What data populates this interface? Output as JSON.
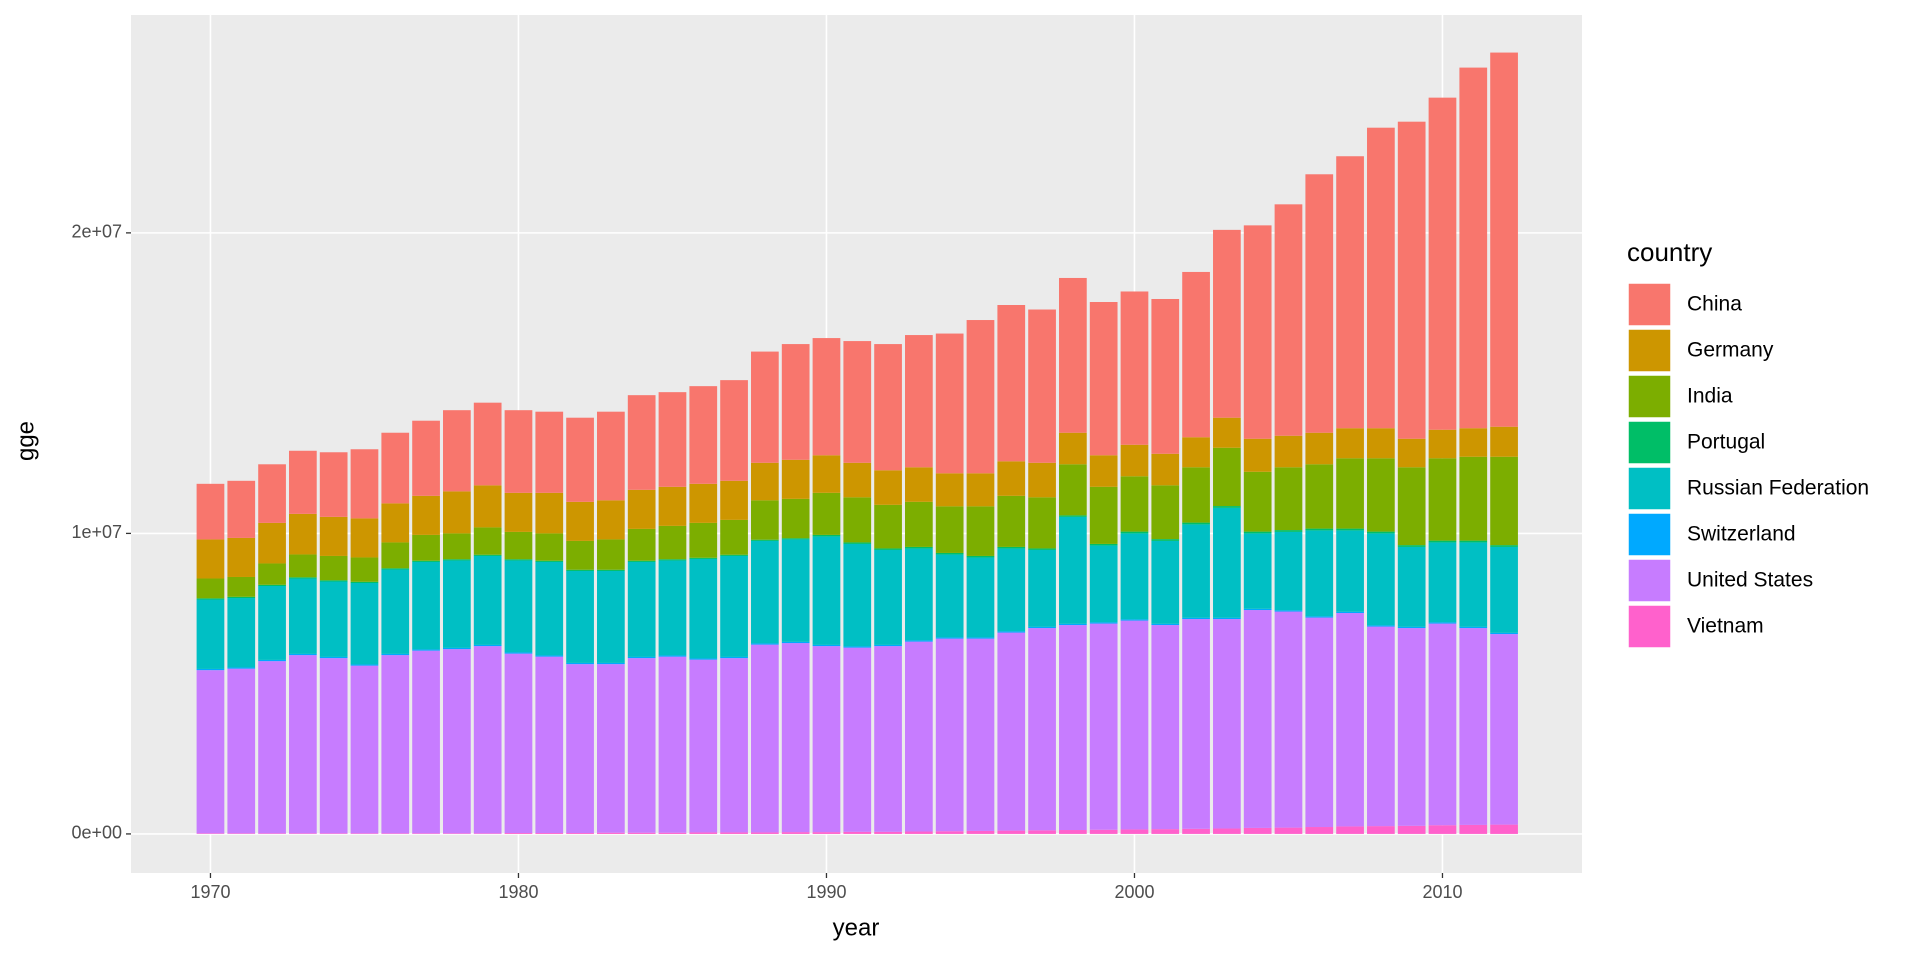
{
  "chart_data": {
    "type": "stacked-bar",
    "x_label": "year",
    "y_label": "gge",
    "legend_title": "country",
    "legend": "right",
    "grid": true,
    "x": [
      1970,
      1971,
      1972,
      1973,
      1974,
      1975,
      1976,
      1977,
      1978,
      1979,
      1980,
      1981,
      1982,
      1983,
      1984,
      1985,
      1986,
      1987,
      1988,
      1989,
      1990,
      1991,
      1992,
      1993,
      1994,
      1995,
      1996,
      1997,
      1998,
      1999,
      2000,
      2001,
      2002,
      2003,
      2004,
      2005,
      2006,
      2007,
      2008,
      2009,
      2010,
      2011,
      2012
    ],
    "xlim": [
      1967.42,
      2014.53
    ],
    "xticks": [
      1970,
      1980,
      1990,
      2000,
      2010
    ],
    "ylim": [
      -1300000,
      27250000
    ],
    "yticks": [
      {
        "value": 0,
        "label": "0e+00"
      },
      {
        "value": 10000000,
        "label": "1e+07"
      },
      {
        "value": 20000000,
        "label": "2e+07"
      }
    ],
    "series": [
      {
        "name": "China",
        "color": "#F8766D",
        "values": [
          1850000,
          1900000,
          1950000,
          2100000,
          2150000,
          2300000,
          2350000,
          2500000,
          2700000,
          2750000,
          2750000,
          2700000,
          2800000,
          2950000,
          3150000,
          3150000,
          3250000,
          3350000,
          3700000,
          3850000,
          3900000,
          4050000,
          4200000,
          4400000,
          4650000,
          5100000,
          5200000,
          5100000,
          5150000,
          5100000,
          5100000,
          5150000,
          5500000,
          6250000,
          7100000,
          7700000,
          8600000,
          9050000,
          10000000,
          10550000,
          11050000,
          12000000,
          12450000
        ]
      },
      {
        "name": "Germany",
        "color": "#CD9600",
        "values": [
          1300000,
          1300000,
          1350000,
          1350000,
          1300000,
          1300000,
          1300000,
          1300000,
          1400000,
          1400000,
          1300000,
          1350000,
          1300000,
          1300000,
          1300000,
          1300000,
          1300000,
          1300000,
          1250000,
          1300000,
          1250000,
          1150000,
          1150000,
          1150000,
          1100000,
          1100000,
          1150000,
          1150000,
          1050000,
          1050000,
          1050000,
          1050000,
          1000000,
          1000000,
          1100000,
          1050000,
          1050000,
          1000000,
          1000000,
          950000,
          950000,
          950000,
          1000000
        ]
      },
      {
        "name": "India",
        "color": "#7CAE00",
        "values": [
          660000,
          660000,
          710000,
          760000,
          810000,
          810000,
          860000,
          860000,
          860000,
          910000,
          910000,
          910000,
          960000,
          1010000,
          1060000,
          1110000,
          1160000,
          1160000,
          1310000,
          1310000,
          1400000,
          1500000,
          1450000,
          1500000,
          1550000,
          1650000,
          1700000,
          1700000,
          1700000,
          1900000,
          1840000,
          1790000,
          1840000,
          1940000,
          1990000,
          2090000,
          2140000,
          2340000,
          2440000,
          2590000,
          2740000,
          2790000,
          2940000
        ]
      },
      {
        "name": "Portugal",
        "color": "#00BE67",
        "values": [
          40000,
          40000,
          40000,
          40000,
          40000,
          40000,
          40000,
          40000,
          40000,
          40000,
          40000,
          40000,
          40000,
          40000,
          40000,
          40000,
          40000,
          40000,
          40000,
          40000,
          50000,
          50000,
          50000,
          50000,
          50000,
          50000,
          50000,
          50000,
          50000,
          50000,
          60000,
          60000,
          60000,
          60000,
          60000,
          60000,
          60000,
          60000,
          60000,
          60000,
          60000,
          60000,
          60000
        ]
      },
      {
        "name": "Russian Federation",
        "color": "#00BFC4",
        "values": [
          2310000,
          2310000,
          2460000,
          2510000,
          2510000,
          2710000,
          2810000,
          2910000,
          2910000,
          2960000,
          3060000,
          3110000,
          3060000,
          3060000,
          3160000,
          3160000,
          3310000,
          3360000,
          3410000,
          3410000,
          3610000,
          3410000,
          3160000,
          3060000,
          2760000,
          2660000,
          2760000,
          2560000,
          3560000,
          2560000,
          2860000,
          2760000,
          3110000,
          3660000,
          2510000,
          2610000,
          2860000,
          2710000,
          3060000,
          2660000,
          2660000,
          2810000,
          2860000
        ]
      },
      {
        "name": "Switzerland",
        "color": "#00A9FF",
        "values": [
          40000,
          40000,
          40000,
          40000,
          40000,
          40000,
          40000,
          40000,
          40000,
          40000,
          40000,
          40000,
          40000,
          40000,
          40000,
          40000,
          40000,
          40000,
          40000,
          40000,
          40000,
          40000,
          40000,
          40000,
          40000,
          40000,
          40000,
          40000,
          40000,
          40000,
          40000,
          40000,
          40000,
          40000,
          40000,
          40000,
          40000,
          40000,
          40000,
          40000,
          40000,
          40000,
          40000
        ]
      },
      {
        "name": "United States",
        "color": "#C77CFF",
        "values": [
          5430000,
          5480000,
          5730000,
          5930000,
          5830000,
          5580000,
          5930000,
          6080000,
          6130000,
          6230000,
          5970000,
          5870000,
          5620000,
          5610000,
          5810000,
          5860000,
          5750000,
          5800000,
          6250000,
          6290000,
          6190000,
          6130000,
          6180000,
          6320000,
          6410000,
          6400000,
          6590000,
          6730000,
          6820000,
          6860000,
          6950000,
          6790000,
          6980000,
          6970000,
          7250000,
          7190000,
          6970000,
          7100000,
          6640000,
          6580000,
          6710000,
          6550000,
          6340000
        ]
      },
      {
        "name": "Vietnam",
        "color": "#FF61CC",
        "values": [
          20000,
          20000,
          20000,
          20000,
          20000,
          20000,
          20000,
          20000,
          20000,
          20000,
          30000,
          30000,
          30000,
          40000,
          40000,
          40000,
          50000,
          50000,
          50000,
          60000,
          60000,
          70000,
          70000,
          80000,
          90000,
          100000,
          110000,
          120000,
          130000,
          140000,
          150000,
          160000,
          170000,
          180000,
          200000,
          210000,
          230000,
          250000,
          260000,
          270000,
          290000,
          300000,
          310000
        ]
      }
    ]
  }
}
